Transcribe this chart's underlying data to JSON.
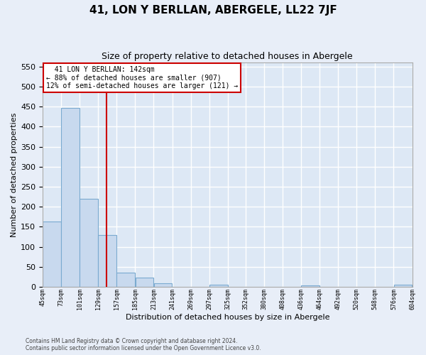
{
  "title": "41, LON Y BERLLAN, ABERGELE, LL22 7JF",
  "subtitle": "Size of property relative to detached houses in Abergele",
  "xlabel": "Distribution of detached houses by size in Abergele",
  "ylabel": "Number of detached properties",
  "bar_color": "#c8d9ee",
  "bar_edge_color": "#7aaad0",
  "bg_color": "#dde8f5",
  "fig_bg": "#e8eef8",
  "grid_color": "#ffffff",
  "vline_x": 142,
  "vline_color": "#cc0000",
  "ann_line1": "  41 LON Y BERLLAN: 142sqm  ",
  "ann_line2": "← 88% of detached houses are smaller (907)",
  "ann_line3": "12% of semi-detached houses are larger (121) →",
  "bins": [
    45,
    73,
    101,
    129,
    157,
    185,
    213,
    241,
    269,
    297,
    325,
    352,
    380,
    408,
    436,
    464,
    492,
    520,
    548,
    576,
    604
  ],
  "bar_heights": [
    163,
    447,
    220,
    130,
    35,
    23,
    10,
    0,
    0,
    5,
    0,
    0,
    0,
    0,
    4,
    0,
    0,
    0,
    0,
    5
  ],
  "ylim": [
    0,
    560
  ],
  "yticks": [
    0,
    50,
    100,
    150,
    200,
    250,
    300,
    350,
    400,
    450,
    500,
    550
  ],
  "xtick_labels": [
    "45sqm",
    "73sqm",
    "101sqm",
    "129sqm",
    "157sqm",
    "185sqm",
    "213sqm",
    "241sqm",
    "269sqm",
    "297sqm",
    "325sqm",
    "352sqm",
    "380sqm",
    "408sqm",
    "436sqm",
    "464sqm",
    "492sqm",
    "520sqm",
    "548sqm",
    "576sqm",
    "604sqm"
  ],
  "footer": "Contains HM Land Registry data © Crown copyright and database right 2024.\nContains public sector information licensed under the Open Government Licence v3.0.",
  "title_fontsize": 11,
  "subtitle_fontsize": 9,
  "ylabel_fontsize": 8,
  "xlabel_fontsize": 8,
  "ytick_fontsize": 8,
  "xtick_fontsize": 6,
  "footer_fontsize": 5.5
}
